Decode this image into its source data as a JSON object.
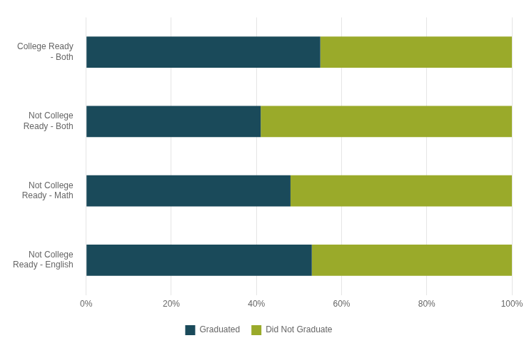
{
  "chart_data": {
    "type": "bar",
    "orientation": "horizontal",
    "stacked": true,
    "categories": [
      "College Ready\n - Both",
      "Not College\nReady - Both",
      "Not College\nReady - Math",
      "Not College\nReady - English"
    ],
    "series": [
      {
        "name": "Graduated",
        "color": "#1a4a5a",
        "values": [
          55,
          41,
          48,
          53
        ]
      },
      {
        "name": "Did Not Graduate",
        "color": "#9aaa2a",
        "values": [
          45,
          59,
          52,
          47
        ]
      }
    ],
    "xlim": [
      0,
      100
    ],
    "xticks": [
      {
        "value": 0,
        "label": "0%"
      },
      {
        "value": 20,
        "label": "20%"
      },
      {
        "value": 40,
        "label": "40%"
      },
      {
        "value": 60,
        "label": "60%"
      },
      {
        "value": 80,
        "label": "80%"
      },
      {
        "value": 100,
        "label": "100%"
      }
    ],
    "grid": true,
    "legend": "bottom"
  }
}
